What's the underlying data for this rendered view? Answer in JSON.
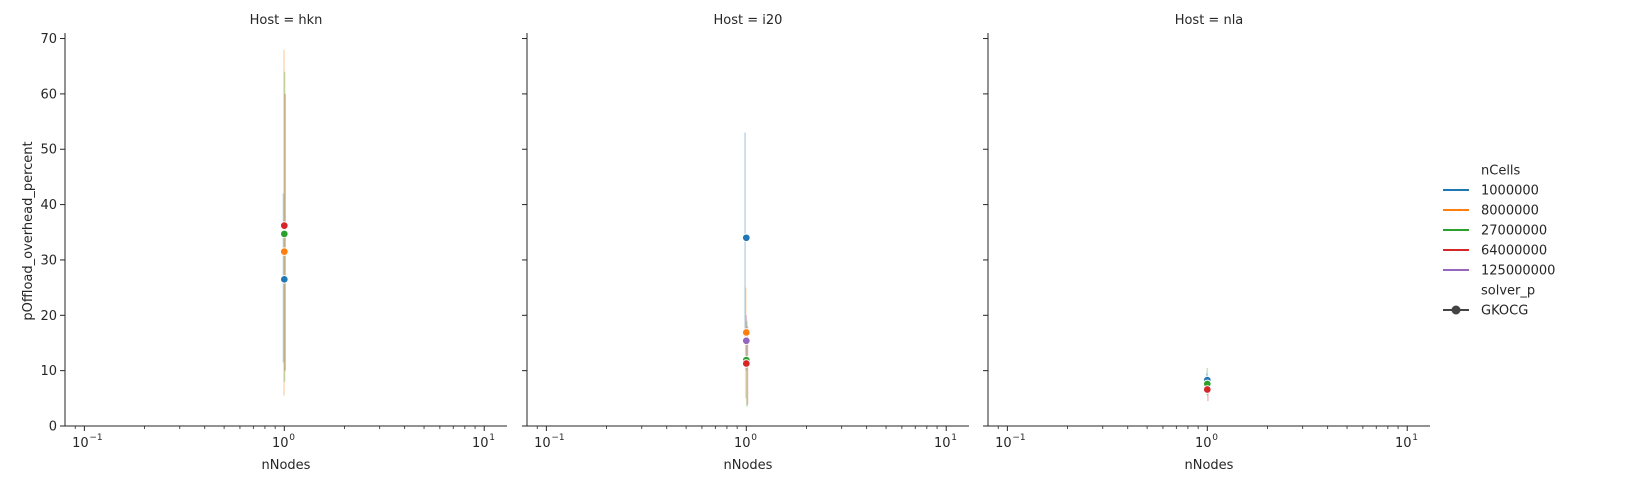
{
  "chart_data": {
    "type": "scatter",
    "xscale": "log",
    "xlabel": "nNodes",
    "ylabel": "pOffload_overhead_percent",
    "xlim": [
      0.08,
      13
    ],
    "ylim": [
      0,
      71
    ],
    "xticks": [
      {
        "value": 0.1,
        "base": "10",
        "exp": "−1"
      },
      {
        "value": 1,
        "base": "10",
        "exp": "0"
      },
      {
        "value": 10,
        "base": "10",
        "exp": "1"
      }
    ],
    "yticks": [
      {
        "value": 0,
        "label": "0"
      },
      {
        "value": 10,
        "label": "10"
      },
      {
        "value": 20,
        "label": "20"
      },
      {
        "value": 30,
        "label": "30"
      },
      {
        "value": 40,
        "label": "40"
      },
      {
        "value": 50,
        "label": "50"
      },
      {
        "value": 60,
        "label": "60"
      },
      {
        "value": 70,
        "label": "70"
      }
    ],
    "sharey": true,
    "grid": false,
    "legend_placement": "right",
    "hue_title": "nCells",
    "style_title": "solver_p",
    "style_entries": [
      {
        "name": "GKOCG",
        "color": "#444444"
      }
    ],
    "hue_series": [
      {
        "name": "1000000",
        "color": "#1f77b4"
      },
      {
        "name": "8000000",
        "color": "#ff7f0e"
      },
      {
        "name": "27000000",
        "color": "#2ca02c"
      },
      {
        "name": "64000000",
        "color": "#d62728"
      },
      {
        "name": "125000000",
        "color": "#9467bd"
      }
    ],
    "panels": [
      {
        "title": "Host = hkn",
        "points": [
          {
            "series": "1000000",
            "x": 1,
            "y": 26.5,
            "ci": [
              11.5,
              42.0
            ]
          },
          {
            "series": "8000000",
            "x": 1,
            "y": 31.5,
            "ci": [
              5.5,
              68.0
            ]
          },
          {
            "series": "27000000",
            "x": 1,
            "y": 34.7,
            "ci": [
              8.0,
              64.0
            ]
          },
          {
            "series": "64000000",
            "x": 1,
            "y": 36.2,
            "ci": [
              10.0,
              60.0
            ]
          }
        ]
      },
      {
        "title": "Host = i20",
        "points": [
          {
            "series": "1000000",
            "x": 1,
            "y": 34.0,
            "ci": [
              16.0,
              53.0
            ]
          },
          {
            "series": "8000000",
            "x": 1,
            "y": 16.9,
            "ci": [
              5.0,
              25.0
            ]
          },
          {
            "series": "125000000",
            "x": 1,
            "y": 15.4,
            "ci": [
              10.0,
              20.0
            ]
          },
          {
            "series": "27000000",
            "x": 1,
            "y": 11.9,
            "ci": [
              3.5,
              19.0
            ]
          },
          {
            "series": "64000000",
            "x": 1,
            "y": 11.3,
            "ci": [
              3.8,
              18.0
            ]
          }
        ]
      },
      {
        "title": "Host = nla",
        "points": [
          {
            "series": "1000000",
            "x": 1,
            "y": 8.3,
            "ci": [
              7.0,
              9.5
            ]
          },
          {
            "series": "27000000",
            "x": 1,
            "y": 7.6,
            "ci": [
              5.5,
              10.5
            ]
          },
          {
            "series": "64000000",
            "x": 1,
            "y": 6.6,
            "ci": [
              4.5,
              8.5
            ]
          }
        ]
      }
    ]
  }
}
